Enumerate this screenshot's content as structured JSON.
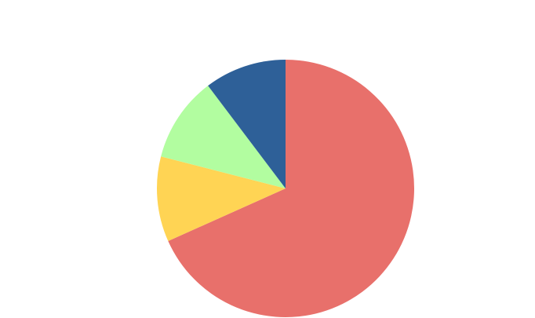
{
  "chart_data": {
    "type": "pie",
    "title": "",
    "start_angle_deg": 0,
    "direction": "clockwise",
    "legend": "none",
    "slices": [
      {
        "value": 68.3,
        "color": "#E8706B"
      },
      {
        "value": 10.7,
        "color": "#FFD454"
      },
      {
        "value": 10.7,
        "color": "#B2FDA0"
      },
      {
        "value": 10.3,
        "color": "#2E6098"
      }
    ]
  }
}
